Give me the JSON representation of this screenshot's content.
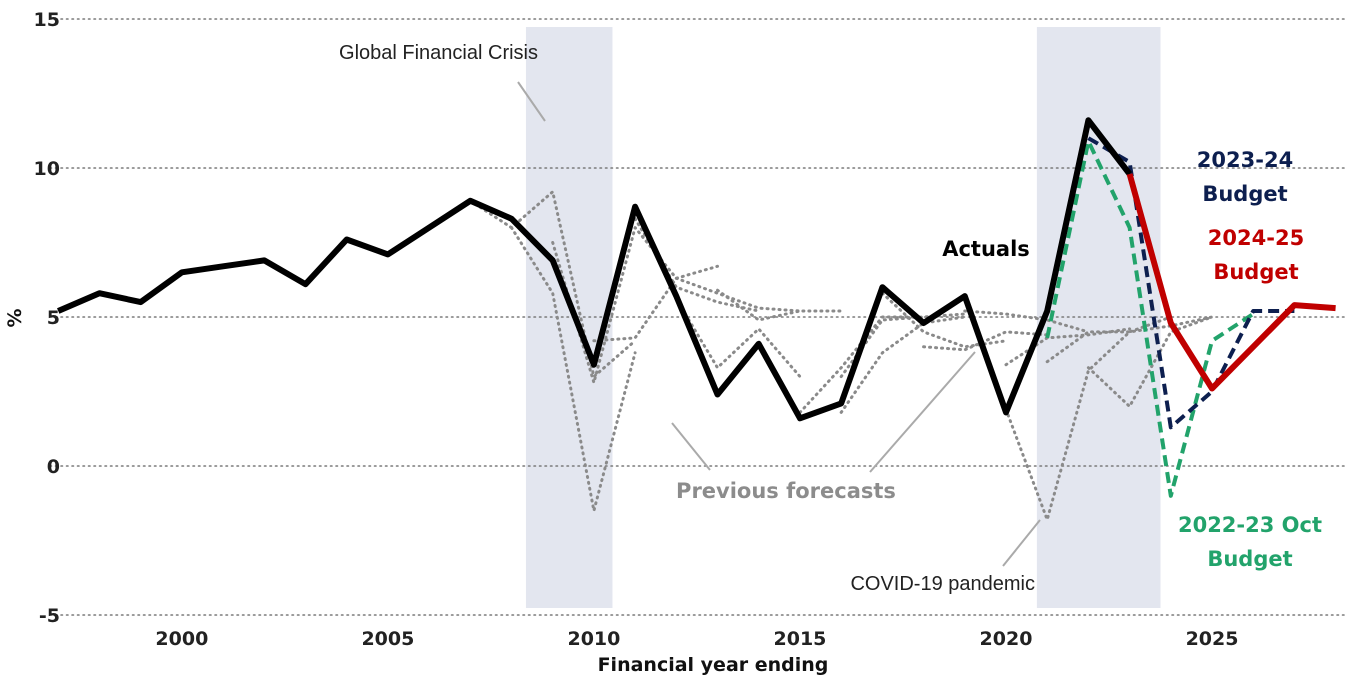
{
  "chart_data": {
    "type": "line",
    "xlabel": "Financial year ending",
    "ylabel": "%",
    "xlim": [
      1996.8,
      2028.3
    ],
    "ylim": [
      -5,
      15
    ],
    "x_ticks": [
      2000,
      2005,
      2010,
      2015,
      2020,
      2025
    ],
    "y_ticks": [
      -5,
      0,
      5,
      10,
      15
    ],
    "grid": "horizontal dotted",
    "shaded_periods": [
      {
        "name": "Global Financial Crisis",
        "start": 2008.35,
        "end": 2010.45
      },
      {
        "name": "COVID-19 pandemic",
        "start": 2020.75,
        "end": 2023.75
      }
    ],
    "annotations": [
      "Global Financial Crisis",
      "COVID-19 pandemic",
      "Previous forecasts",
      "Actuals",
      "2023-24",
      "Budget",
      "2024-25",
      "Budget",
      "2022-23 Oct",
      "Budget"
    ],
    "series": [
      {
        "name": "Actuals",
        "color": "#000000",
        "style": "solid",
        "x": [
          1997,
          1998,
          1999,
          2000,
          2001,
          2002,
          2003,
          2004,
          2005,
          2006,
          2007,
          2008,
          2009,
          2010,
          2011,
          2012,
          2013,
          2014,
          2015,
          2016,
          2017,
          2018,
          2019,
          2020,
          2021,
          2022,
          2023
        ],
        "y": [
          5.2,
          5.8,
          5.5,
          6.5,
          6.7,
          6.9,
          6.1,
          7.6,
          7.1,
          8.0,
          8.9,
          8.3,
          6.9,
          3.4,
          8.7,
          5.7,
          2.4,
          4.1,
          1.6,
          2.1,
          6.0,
          4.8,
          5.7,
          1.8,
          5.2,
          11.6,
          9.8
        ]
      },
      {
        "name": "2024-25 Budget",
        "color": "#c00000",
        "style": "solid",
        "x": [
          2023,
          2024,
          2025,
          2026,
          2027,
          2028
        ],
        "y": [
          9.8,
          4.8,
          2.6,
          4.0,
          5.4,
          5.3
        ]
      },
      {
        "name": "2023-24 Budget",
        "color": "#0d1f4f",
        "style": "dashed",
        "x": [
          2022,
          2023,
          2024,
          2025,
          2026,
          2027
        ],
        "y": [
          11.0,
          10.2,
          1.3,
          2.5,
          5.2,
          5.2
        ]
      },
      {
        "name": "2022-23 Oct Budget",
        "color": "#22a36b",
        "style": "dashed",
        "x": [
          2021,
          2022,
          2023,
          2024,
          2025,
          2026
        ],
        "y": [
          4.3,
          10.9,
          8.0,
          -1.0,
          4.2,
          5.1
        ]
      }
    ],
    "previous_forecasts": [
      {
        "x": [
          2007,
          2008,
          2009,
          2010,
          2011
        ],
        "y": [
          8.9,
          8.0,
          9.2,
          3.0,
          4.2
        ]
      },
      {
        "x": [
          2008,
          2009,
          2010,
          2011
        ],
        "y": [
          8.0,
          5.8,
          -1.5,
          3.8
        ]
      },
      {
        "x": [
          2009,
          2010,
          2011,
          2012
        ],
        "y": [
          7.5,
          2.8,
          8.0,
          6.3
        ]
      },
      {
        "x": [
          2010,
          2011,
          2012,
          2013
        ],
        "y": [
          4.2,
          4.3,
          6.3,
          6.7
        ]
      },
      {
        "x": [
          2011,
          2012,
          2013,
          2014
        ],
        "y": [
          8.3,
          6.0,
          5.5,
          5.2
        ]
      },
      {
        "x": [
          2012,
          2013,
          2014,
          2015
        ],
        "y": [
          6.3,
          5.8,
          5.3,
          5.2
        ]
      },
      {
        "x": [
          2013,
          2014,
          2015,
          2016
        ],
        "y": [
          5.9,
          4.9,
          5.2,
          5.2
        ]
      },
      {
        "x": [
          2012,
          2013,
          2014,
          2015
        ],
        "y": [
          5.6,
          3.3,
          4.6,
          3.0
        ]
      },
      {
        "x": [
          2015,
          2016,
          2017,
          2018
        ],
        "y": [
          1.8,
          3.3,
          5.0,
          5.0
        ]
      },
      {
        "x": [
          2016,
          2017,
          2018,
          2019
        ],
        "y": [
          1.8,
          3.8,
          4.8,
          5.0
        ]
      },
      {
        "x": [
          2016,
          2017,
          2018,
          2019
        ],
        "y": [
          3.0,
          4.9,
          5.0,
          5.1
        ]
      },
      {
        "x": [
          2017,
          2018,
          2019,
          2020
        ],
        "y": [
          5.8,
          4.5,
          4.0,
          4.2
        ]
      },
      {
        "x": [
          2018,
          2019,
          2020,
          2021
        ],
        "y": [
          4.0,
          3.9,
          4.5,
          4.4
        ]
      },
      {
        "x": [
          2019,
          2020,
          2021,
          2022
        ],
        "y": [
          5.2,
          5.1,
          4.9,
          4.5
        ]
      },
      {
        "x": [
          2020,
          2021,
          2022,
          2023
        ],
        "y": [
          3.4,
          4.3,
          4.4,
          4.6
        ]
      },
      {
        "x": [
          2020,
          2021,
          2022,
          2023,
          2024
        ],
        "y": [
          1.9,
          -1.8,
          3.2,
          4.5,
          5.0
        ]
      },
      {
        "x": [
          2021,
          2022,
          2023,
          2024,
          2025
        ],
        "y": [
          3.5,
          4.5,
          4.5,
          4.7,
          5.0
        ]
      },
      {
        "x": [
          2022,
          2023,
          2024,
          2025
        ],
        "y": [
          3.3,
          2.0,
          4.5,
          5.0
        ]
      }
    ]
  }
}
